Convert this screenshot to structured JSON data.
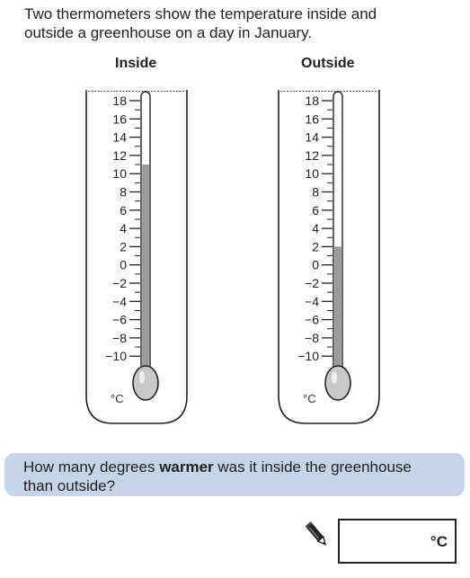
{
  "intro": {
    "line1": "Two thermometers show the temperature inside and",
    "line2": "outside a greenhouse on a day in January."
  },
  "thermometers": [
    {
      "id": "inside",
      "label": "Inside",
      "unit": "°C",
      "reading_c": 11,
      "scale_labels": [
        "18",
        "16",
        "14",
        "12",
        "10",
        "8",
        "6",
        "4",
        "2",
        "0",
        "−2",
        "−4",
        "−6",
        "−8",
        "−10"
      ]
    },
    {
      "id": "outside",
      "label": "Outside",
      "unit": "°C",
      "reading_c": 2,
      "scale_labels": [
        "18",
        "16",
        "14",
        "12",
        "10",
        "8",
        "6",
        "4",
        "2",
        "0",
        "−2",
        "−4",
        "−6",
        "−8",
        "−10"
      ]
    }
  ],
  "question": {
    "part1": "How many degrees ",
    "bold": "warmer",
    "part2": " was it inside the greenhouse",
    "line2": "than outside?"
  },
  "answer": {
    "value": "",
    "unit": "°C"
  },
  "colors": {
    "mercury": "#9a9a9a",
    "bulb": "#c8c8c8",
    "question_bg": "#c6d4ea",
    "outline": "#222222"
  },
  "icons": {
    "answer_prompt": "pencil-icon"
  }
}
